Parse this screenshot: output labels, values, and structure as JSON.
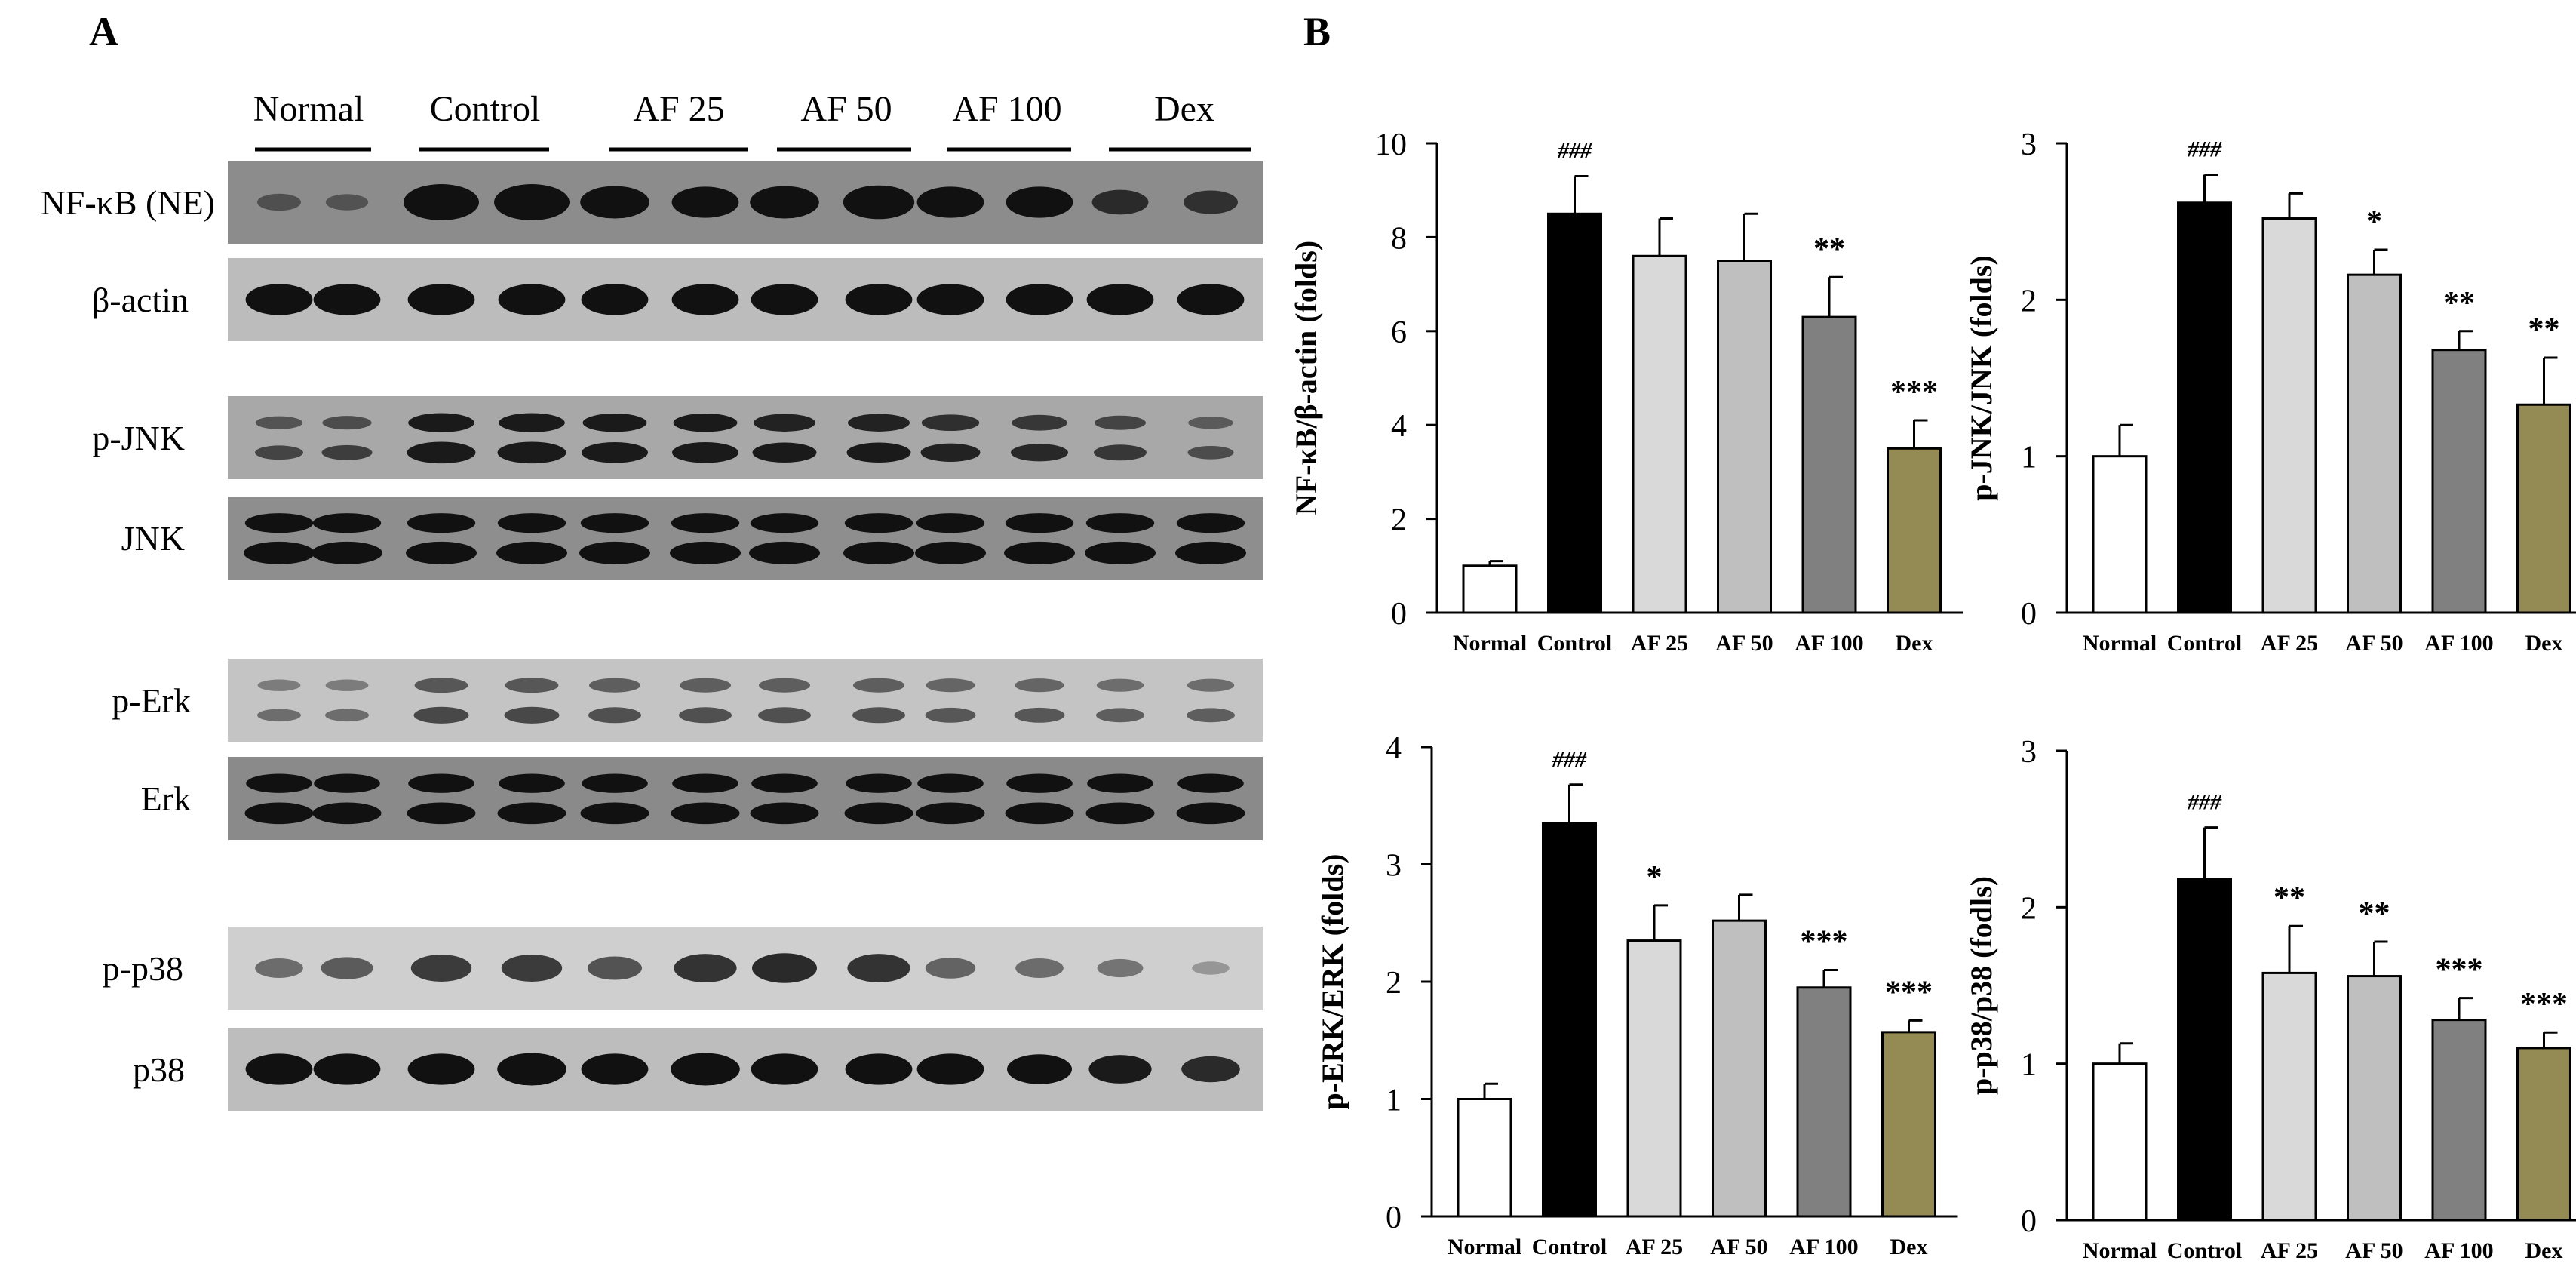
{
  "panel_a": {
    "label": "A",
    "groups": [
      "Normal",
      "Control",
      "AF 25",
      "AF 50",
      "AF 100",
      "Dex"
    ],
    "blots": [
      {
        "label": "NF-κB (NE)",
        "bg": "#8c8c8c",
        "band_color": "#111111",
        "bands": 1,
        "intensity": [
          0.25,
          0.22,
          1.0,
          1.0,
          0.85,
          0.8,
          0.85,
          0.9,
          0.8,
          0.8,
          0.55,
          0.5
        ]
      },
      {
        "label": "β-actin",
        "bg": "#bcbcbc",
        "band_color": "#111111",
        "bands": 1,
        "intensity": [
          0.8,
          0.8,
          0.8,
          0.8,
          0.8,
          0.8,
          0.8,
          0.8,
          0.8,
          0.8,
          0.8,
          0.8
        ]
      },
      {
        "label": "p-JNK",
        "bg": "#a8a8a8",
        "band_color": "#1a1a1a",
        "bands": 2,
        "intensity": [
          0.4,
          0.45,
          0.85,
          0.85,
          0.8,
          0.8,
          0.75,
          0.75,
          0.65,
          0.6,
          0.5,
          0.35
        ]
      },
      {
        "label": "JNK",
        "bg": "#8e8e8e",
        "band_color": "#111111",
        "bands": 2,
        "intensity": [
          0.9,
          0.9,
          0.9,
          0.9,
          0.9,
          0.9,
          0.9,
          0.9,
          0.9,
          0.9,
          0.9,
          0.9
        ]
      },
      {
        "label": "p-Erk",
        "bg": "#c4c4c4",
        "band_color": "#333333",
        "bands": 2,
        "intensity": [
          0.3,
          0.3,
          0.55,
          0.55,
          0.5,
          0.5,
          0.5,
          0.5,
          0.45,
          0.45,
          0.4,
          0.4
        ]
      },
      {
        "label": "Erk",
        "bg": "#8a8a8a",
        "band_color": "#111111",
        "bands": 2,
        "intensity": [
          0.85,
          0.85,
          0.85,
          0.85,
          0.85,
          0.85,
          0.85,
          0.85,
          0.85,
          0.85,
          0.85,
          0.85
        ]
      },
      {
        "label": "p-p38",
        "bg": "#cfcfcf",
        "band_color": "#2a2a2a",
        "bands": 1,
        "intensity": [
          0.35,
          0.45,
          0.65,
          0.65,
          0.5,
          0.7,
          0.75,
          0.7,
          0.4,
          0.35,
          0.3,
          0.1
        ]
      },
      {
        "label": "p38",
        "bg": "#bdbdbd",
        "band_color": "#111111",
        "bands": 1,
        "intensity": [
          0.8,
          0.8,
          0.8,
          0.85,
          0.8,
          0.85,
          0.8,
          0.8,
          0.8,
          0.75,
          0.7,
          0.6
        ]
      }
    ]
  },
  "panel_b": {
    "label": "B"
  },
  "chart_data": [
    {
      "type": "bar",
      "title": "",
      "xlabel": "",
      "ylabel": "NF-κB/β-actin (folds)",
      "categories": [
        "Normal",
        "Control",
        "AF 25",
        "AF 50",
        "AF 100",
        "Dex"
      ],
      "values": [
        1.0,
        8.5,
        7.6,
        7.5,
        6.3,
        3.5
      ],
      "errors": [
        0.1,
        0.8,
        0.8,
        1.0,
        0.85,
        0.6
      ],
      "annotations": [
        "",
        "###",
        "",
        "",
        "**",
        "***"
      ],
      "ylim": [
        0,
        10
      ],
      "yticks": [
        0,
        2,
        4,
        6,
        8,
        10
      ]
    },
    {
      "type": "bar",
      "title": "",
      "xlabel": "",
      "ylabel": "p-JNK/JNK (folds)",
      "categories": [
        "Normal",
        "Control",
        "AF 25",
        "AF 50",
        "AF 100",
        "Dex"
      ],
      "values": [
        1.0,
        2.62,
        2.52,
        2.16,
        1.68,
        1.33
      ],
      "errors": [
        0.2,
        0.18,
        0.16,
        0.16,
        0.12,
        0.3
      ],
      "annotations": [
        "",
        "###",
        "",
        "*",
        "**",
        "**"
      ],
      "ylim": [
        0,
        3
      ],
      "yticks": [
        0,
        1,
        2,
        3
      ]
    },
    {
      "type": "bar",
      "title": "",
      "xlabel": "",
      "ylabel": "p-ERK/ERK (folds)",
      "categories": [
        "Normal",
        "Control",
        "AF 25",
        "AF 50",
        "AF 100",
        "Dex"
      ],
      "values": [
        1.0,
        3.35,
        2.35,
        2.52,
        1.95,
        1.57
      ],
      "errors": [
        0.13,
        0.33,
        0.3,
        0.22,
        0.15,
        0.1
      ],
      "annotations": [
        "",
        "###",
        "*",
        "",
        "***",
        "***"
      ],
      "ylim": [
        0,
        4
      ],
      "yticks": [
        0,
        1,
        2,
        3,
        4
      ]
    },
    {
      "type": "bar",
      "title": "",
      "xlabel": "",
      "ylabel": "p-p38/p38 (fodls)",
      "categories": [
        "Normal",
        "Control",
        "AF 25",
        "AF 50",
        "AF 100",
        "Dex"
      ],
      "values": [
        1.0,
        2.18,
        1.58,
        1.56,
        1.28,
        1.1
      ],
      "errors": [
        0.13,
        0.33,
        0.3,
        0.22,
        0.14,
        0.1
      ],
      "annotations": [
        "",
        "###",
        "**",
        "**",
        "***",
        "***"
      ],
      "ylim": [
        0,
        3
      ],
      "yticks": [
        0,
        1,
        2,
        3
      ]
    }
  ],
  "bar_colors": [
    "#ffffff",
    "#000000",
    "#d9d9d9",
    "#bfbfbf",
    "#808080",
    "#948a54"
  ]
}
